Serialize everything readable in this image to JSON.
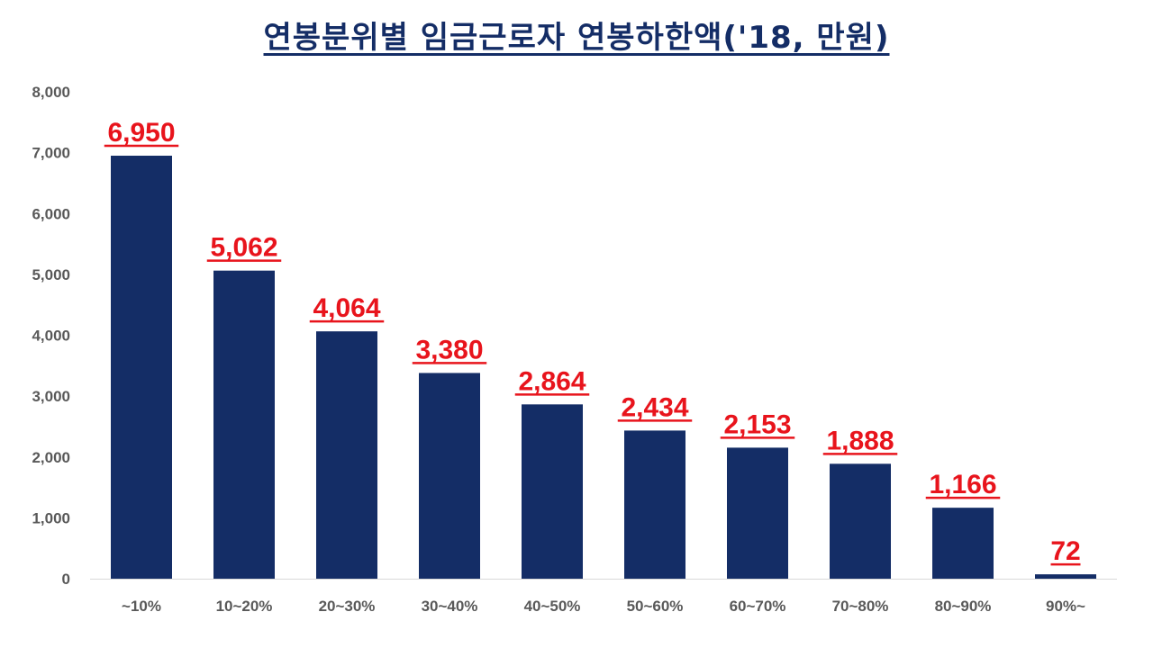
{
  "chart_data": {
    "type": "bar",
    "title": "연봉분위별 임금근로자 연봉하한액('18, 만원)",
    "xlabel": "",
    "ylabel": "",
    "categories": [
      "~10%",
      "10~20%",
      "20~30%",
      "30~40%",
      "40~50%",
      "50~60%",
      "60~70%",
      "70~80%",
      "80~90%",
      "90%~"
    ],
    "values": [
      6950,
      5062,
      4064,
      3380,
      2864,
      2434,
      2153,
      1888,
      1166,
      72
    ],
    "data_labels": [
      "6,950",
      "5,062",
      "4,064",
      "3,380",
      "2,864",
      "2,434",
      "2,153",
      "1,888",
      "1,166",
      "72"
    ],
    "ylim": [
      0,
      8000
    ],
    "yticks": [
      0,
      1000,
      2000,
      3000,
      4000,
      5000,
      6000,
      7000,
      8000
    ],
    "ytick_labels": [
      "0",
      "1,000",
      "2,000",
      "3,000",
      "4,000",
      "5,000",
      "6,000",
      "7,000",
      "8,000"
    ],
    "grid": false,
    "legend": "none",
    "colors": {
      "bar": "#142d66",
      "data_label": "#e8141c",
      "title": "#142d66",
      "tick_label": "#595959",
      "axis_line": "#d9d9d9"
    }
  }
}
